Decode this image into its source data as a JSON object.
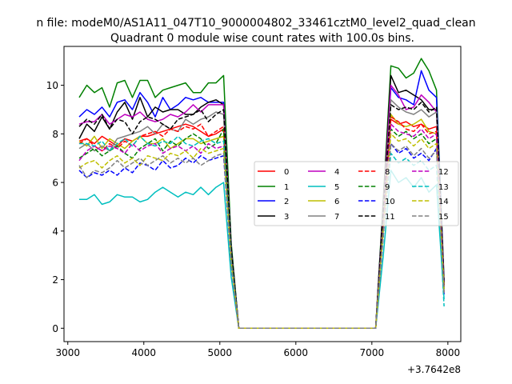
{
  "suptitle": "n file: modeM0/AS1A11_047T10_9000004802_33461cztM0_level2_quad_clean",
  "chart_data": {
    "type": "line",
    "title": "Quadrant 0 module wise count rates with 100.0s bins.",
    "xlabel": "",
    "ylabel": "",
    "x_offset_label": "+3.7642e8",
    "xlim": [
      2950,
      8170
    ],
    "ylim": [
      -0.55,
      11.6
    ],
    "x_ticks": [
      3000,
      4000,
      5000,
      6000,
      7000,
      8000
    ],
    "x_tick_labels": [
      "3000",
      "4000",
      "5000",
      "6000",
      "7000",
      "8000"
    ],
    "y_ticks": [
      0,
      2,
      4,
      6,
      8,
      10
    ],
    "y_tick_labels": [
      "0",
      "2",
      "4",
      "6",
      "8",
      "10"
    ],
    "grid": false,
    "legend": {
      "position": "center-right",
      "columns": 4
    },
    "x": [
      3150,
      3250,
      3350,
      3450,
      3550,
      3650,
      3750,
      3850,
      3950,
      4050,
      4150,
      4250,
      4350,
      4450,
      4550,
      4650,
      4750,
      4850,
      4950,
      5050,
      5150,
      5250,
      5350,
      5450,
      5550,
      5650,
      5750,
      5850,
      5950,
      6050,
      6150,
      6250,
      6350,
      6450,
      6550,
      6650,
      6750,
      6850,
      6950,
      7050,
      7150,
      7250,
      7350,
      7450,
      7550,
      7650,
      7750,
      7850,
      7950
    ],
    "series": [
      {
        "name": "0",
        "color": "#ff0000",
        "dash": "solid",
        "values": [
          7.7,
          7.8,
          7.6,
          7.9,
          7.7,
          7.5,
          7.8,
          7.7,
          7.9,
          7.9,
          8.0,
          8.1,
          8.2,
          8.3,
          8.4,
          8.3,
          8.1,
          7.9,
          8.0,
          8.2,
          3.1,
          0,
          0,
          0,
          0,
          0,
          0,
          0,
          0,
          0,
          0,
          0,
          0,
          0,
          0,
          0,
          0,
          0,
          0,
          0,
          4.4,
          8.6,
          8.4,
          8.5,
          8.3,
          8.4,
          8.2,
          8.3,
          1.8
        ]
      },
      {
        "name": "1",
        "color": "#008000",
        "dash": "solid",
        "values": [
          9.5,
          10.0,
          9.7,
          9.9,
          9.1,
          10.1,
          10.2,
          9.5,
          10.2,
          10.2,
          9.5,
          9.8,
          9.9,
          10.0,
          10.1,
          9.7,
          9.7,
          10.1,
          10.1,
          10.4,
          3.5,
          0,
          0,
          0,
          0,
          0,
          0,
          0,
          0,
          0,
          0,
          0,
          0,
          0,
          0,
          0,
          0,
          0,
          0,
          0,
          5.3,
          10.8,
          10.7,
          10.3,
          10.5,
          11.1,
          10.6,
          9.8,
          2.0
        ]
      },
      {
        "name": "2",
        "color": "#0000ff",
        "dash": "solid",
        "values": [
          8.7,
          9.0,
          8.8,
          9.1,
          8.7,
          9.3,
          9.4,
          9.0,
          9.7,
          9.3,
          8.7,
          9.5,
          9.0,
          9.2,
          9.5,
          9.4,
          9.5,
          9.3,
          9.3,
          9.3,
          3.3,
          0,
          0,
          0,
          0,
          0,
          0,
          0,
          0,
          0,
          0,
          0,
          0,
          0,
          0,
          0,
          0,
          0,
          0,
          0,
          5.0,
          9.9,
          9.5,
          9.4,
          9.2,
          10.6,
          9.8,
          9.5,
          1.9
        ]
      },
      {
        "name": "3",
        "color": "#000000",
        "dash": "solid",
        "values": [
          7.8,
          8.4,
          8.1,
          8.7,
          8.2,
          8.9,
          9.3,
          8.6,
          9.5,
          8.7,
          9.1,
          8.9,
          9.0,
          9.0,
          8.8,
          8.8,
          9.1,
          9.3,
          9.4,
          9.2,
          3.3,
          0,
          0,
          0,
          0,
          0,
          0,
          0,
          0,
          0,
          0,
          0,
          0,
          0,
          0,
          0,
          0,
          0,
          0,
          0,
          5.1,
          10.4,
          9.7,
          9.8,
          9.6,
          9.4,
          9.0,
          9.0,
          1.8
        ]
      },
      {
        "name": "4",
        "color": "#bf00bf",
        "dash": "solid",
        "values": [
          8.4,
          8.5,
          8.5,
          8.8,
          8.4,
          8.6,
          8.8,
          8.7,
          8.9,
          8.6,
          8.5,
          8.6,
          8.8,
          8.7,
          8.9,
          9.2,
          8.9,
          9.2,
          9.2,
          9.2,
          3.2,
          0,
          0,
          0,
          0,
          0,
          0,
          0,
          0,
          0,
          0,
          0,
          0,
          0,
          0,
          0,
          0,
          0,
          0,
          0,
          4.9,
          10.0,
          9.6,
          9.0,
          9.1,
          9.6,
          9.3,
          8.9,
          1.8
        ]
      },
      {
        "name": "5",
        "color": "#00bfbf",
        "dash": "solid",
        "values": [
          5.3,
          5.3,
          5.5,
          5.1,
          5.2,
          5.5,
          5.4,
          5.4,
          5.2,
          5.3,
          5.6,
          5.8,
          5.6,
          5.4,
          5.6,
          5.5,
          5.8,
          5.5,
          5.8,
          6.0,
          2.1,
          0,
          0,
          0,
          0,
          0,
          0,
          0,
          0,
          0,
          0,
          0,
          0,
          0,
          0,
          0,
          0,
          0,
          0,
          0,
          3.0,
          6.5,
          6.0,
          6.2,
          5.8,
          6.2,
          5.6,
          5.9,
          1.2
        ]
      },
      {
        "name": "6",
        "color": "#bfbf00",
        "dash": "solid",
        "values": [
          7.7,
          7.5,
          7.9,
          7.4,
          7.8,
          7.6,
          7.4,
          7.7,
          7.9,
          7.6,
          7.6,
          7.8,
          7.4,
          7.6,
          7.8,
          7.8,
          7.6,
          7.7,
          7.8,
          7.9,
          3.0,
          0,
          0,
          0,
          0,
          0,
          0,
          0,
          0,
          0,
          0,
          0,
          0,
          0,
          0,
          0,
          0,
          0,
          0,
          0,
          4.4,
          8.8,
          8.4,
          8.3,
          8.4,
          8.6,
          8.1,
          8.0,
          1.7
        ]
      },
      {
        "name": "7",
        "color": "#808080",
        "dash": "solid",
        "values": [
          7.4,
          7.6,
          7.3,
          7.5,
          7.3,
          7.8,
          7.9,
          8.0,
          8.1,
          8.3,
          8.0,
          8.4,
          8.2,
          8.1,
          8.6,
          8.4,
          8.6,
          8.7,
          8.9,
          8.8,
          3.1,
          0,
          0,
          0,
          0,
          0,
          0,
          0,
          0,
          0,
          0,
          0,
          0,
          0,
          0,
          0,
          0,
          0,
          0,
          0,
          4.7,
          9.4,
          9.1,
          8.9,
          8.8,
          9.0,
          8.7,
          8.9,
          1.8
        ]
      },
      {
        "name": "8",
        "color": "#ff0000",
        "dash": "dashed",
        "values": [
          7.6,
          7.8,
          7.5,
          7.3,
          7.6,
          7.4,
          7.7,
          7.5,
          7.9,
          8.0,
          8.1,
          7.9,
          8.2,
          8.1,
          8.3,
          8.2,
          8.4,
          7.9,
          8.1,
          8.3,
          3.0,
          0,
          0,
          0,
          0,
          0,
          0,
          0,
          0,
          0,
          0,
          0,
          0,
          0,
          0,
          0,
          0,
          0,
          0,
          0,
          4.4,
          8.7,
          8.5,
          8.2,
          8.1,
          8.4,
          8.0,
          8.1,
          1.7
        ]
      },
      {
        "name": "9",
        "color": "#008000",
        "dash": "dashed",
        "values": [
          7.0,
          7.2,
          7.4,
          7.1,
          7.3,
          7.5,
          7.2,
          7.0,
          7.4,
          7.6,
          7.8,
          7.3,
          7.7,
          7.5,
          7.8,
          8.0,
          7.8,
          7.4,
          7.6,
          8.2,
          3.0,
          0,
          0,
          0,
          0,
          0,
          0,
          0,
          0,
          0,
          0,
          0,
          0,
          0,
          0,
          0,
          0,
          0,
          0,
          0,
          4.3,
          8.2,
          7.9,
          8.1,
          7.8,
          8.0,
          7.6,
          7.8,
          1.6
        ]
      },
      {
        "name": "10",
        "color": "#0000ff",
        "dash": "dashed",
        "values": [
          6.5,
          6.2,
          6.4,
          6.3,
          6.5,
          6.3,
          6.6,
          6.4,
          6.8,
          6.7,
          6.5,
          6.9,
          6.6,
          6.7,
          7.0,
          6.8,
          7.1,
          6.9,
          7.0,
          7.1,
          2.6,
          0,
          0,
          0,
          0,
          0,
          0,
          0,
          0,
          0,
          0,
          0,
          0,
          0,
          0,
          0,
          0,
          0,
          0,
          0,
          3.8,
          7.6,
          7.2,
          7.4,
          7.0,
          7.2,
          6.9,
          7.4,
          1.4
        ]
      },
      {
        "name": "11",
        "color": "#000000",
        "dash": "dashed",
        "values": [
          8.3,
          8.6,
          8.4,
          8.8,
          8.2,
          8.6,
          8.5,
          8.0,
          8.5,
          8.7,
          8.6,
          8.4,
          8.2,
          8.6,
          8.7,
          8.8,
          9.0,
          8.5,
          8.8,
          9.0,
          3.3,
          0,
          0,
          0,
          0,
          0,
          0,
          0,
          0,
          0,
          0,
          0,
          0,
          0,
          0,
          0,
          0,
          0,
          0,
          0,
          4.9,
          9.2,
          9.0,
          9.1,
          9.0,
          9.3,
          8.9,
          9.1,
          1.8
        ]
      },
      {
        "name": "12",
        "color": "#bf00bf",
        "dash": "dashed",
        "values": [
          6.9,
          7.3,
          7.5,
          7.3,
          7.5,
          7.4,
          7.2,
          7.6,
          7.3,
          7.5,
          7.6,
          7.2,
          7.4,
          7.5,
          7.3,
          7.5,
          7.2,
          7.6,
          7.4,
          7.5,
          2.7,
          0,
          0,
          0,
          0,
          0,
          0,
          0,
          0,
          0,
          0,
          0,
          0,
          0,
          0,
          0,
          0,
          0,
          0,
          0,
          4.1,
          8.4,
          8.1,
          8.0,
          7.9,
          8.2,
          7.8,
          8.0,
          1.5
        ]
      },
      {
        "name": "13",
        "color": "#00bfbf",
        "dash": "dashed",
        "values": [
          7.6,
          7.6,
          7.5,
          7.7,
          7.3,
          7.6,
          7.8,
          7.5,
          7.9,
          7.6,
          7.5,
          7.7,
          7.6,
          7.9,
          7.6,
          7.5,
          7.7,
          7.8,
          7.6,
          7.7,
          2.8,
          0,
          0,
          0,
          0,
          0,
          0,
          0,
          0,
          0,
          0,
          0,
          0,
          0,
          0,
          0,
          0,
          0,
          0,
          0,
          3.9,
          7.2,
          6.8,
          7.0,
          6.7,
          6.9,
          6.5,
          6.7,
          0.9
        ]
      },
      {
        "name": "14",
        "color": "#bfbf00",
        "dash": "dashed",
        "values": [
          6.6,
          6.8,
          6.9,
          6.6,
          6.9,
          7.1,
          6.8,
          7.0,
          6.7,
          7.1,
          7.0,
          6.9,
          7.2,
          7.1,
          7.3,
          7.0,
          7.4,
          7.2,
          7.3,
          7.4,
          2.7,
          0,
          0,
          0,
          0,
          0,
          0,
          0,
          0,
          0,
          0,
          0,
          0,
          0,
          0,
          0,
          0,
          0,
          0,
          0,
          4.0,
          8.0,
          7.7,
          7.8,
          7.5,
          7.8,
          7.4,
          7.6,
          1.5
        ]
      },
      {
        "name": "15",
        "color": "#808080",
        "dash": "dashed",
        "values": [
          6.7,
          6.2,
          6.5,
          6.4,
          6.6,
          6.9,
          6.6,
          6.8,
          7.0,
          6.7,
          6.9,
          7.1,
          6.8,
          7.0,
          6.8,
          7.0,
          6.7,
          6.9,
          7.1,
          7.2,
          2.6,
          0,
          0,
          0,
          0,
          0,
          0,
          0,
          0,
          0,
          0,
          0,
          0,
          0,
          0,
          0,
          0,
          0,
          0,
          0,
          3.8,
          7.6,
          7.3,
          7.5,
          7.1,
          7.4,
          7.0,
          7.3,
          1.4
        ]
      }
    ]
  }
}
